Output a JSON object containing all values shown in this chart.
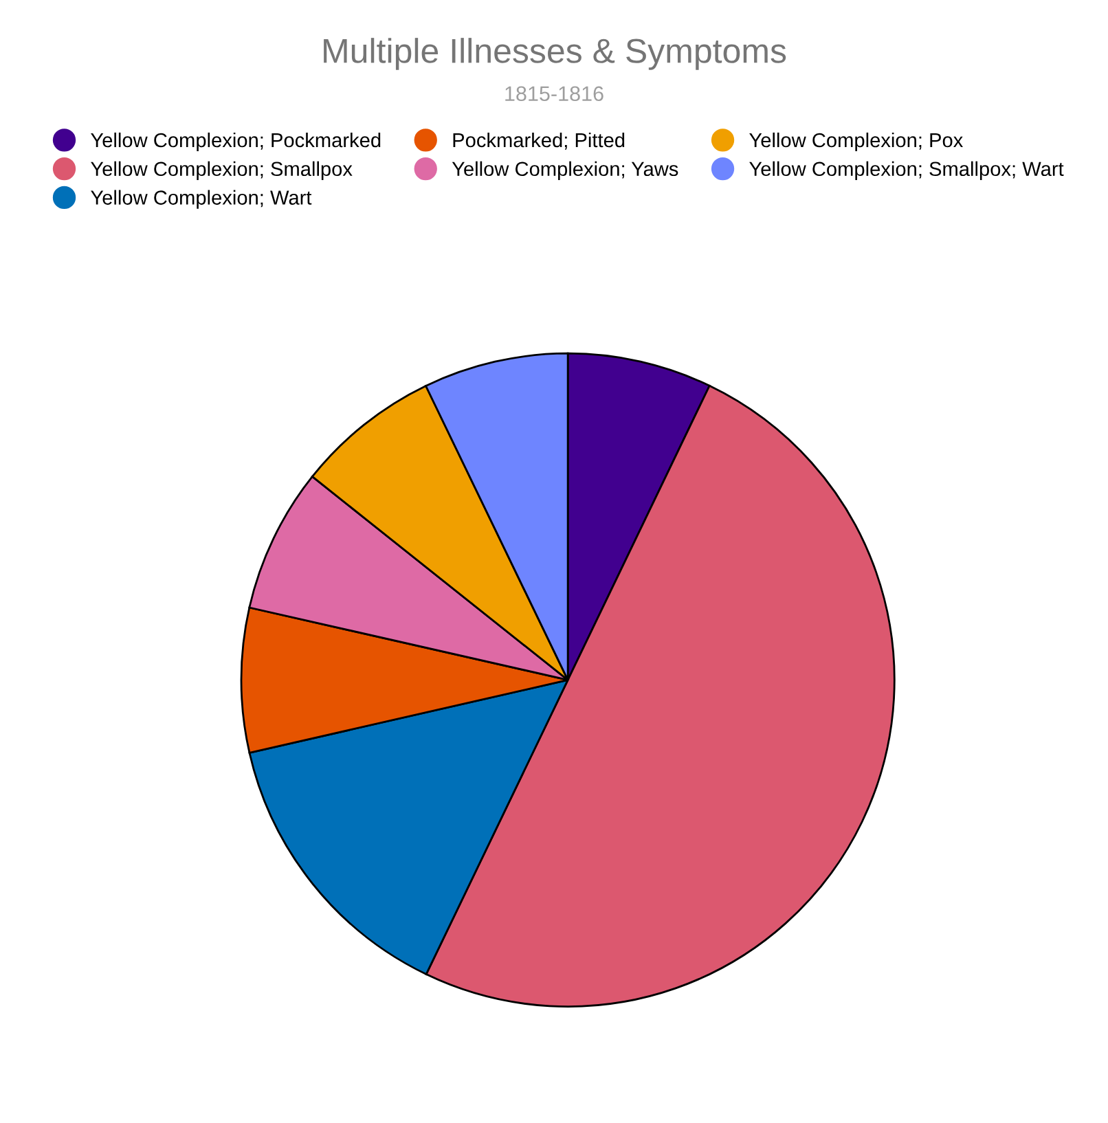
{
  "chart_data": {
    "type": "pie",
    "title": "Multiple Illnesses & Symptoms",
    "subtitle": "1815-1816",
    "categories": [
      "Yellow Complexion; Pockmarked",
      "Yellow Complexion; Smallpox",
      "Yellow Complexion; Wart",
      "Pockmarked; Pitted",
      "Yellow Complexion; Yaws",
      "Yellow Complexion; Pox",
      "Yellow Complexion; Smallpox; Wart"
    ],
    "values": [
      7.14,
      50,
      14.28,
      7.14,
      7.14,
      7.14,
      7.16
    ],
    "colors": [
      "#41008f",
      "#dc586f",
      "#0070b8",
      "#e65400",
      "#de6aa5",
      "#f09f00",
      "#6e85ff"
    ],
    "legend": "top"
  }
}
